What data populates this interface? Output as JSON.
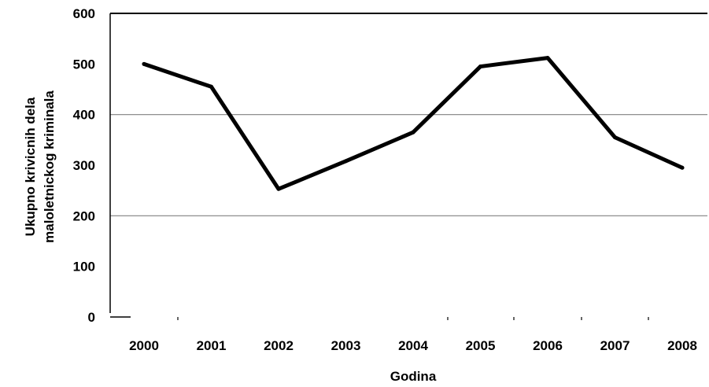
{
  "chart_data": {
    "type": "line",
    "x": [
      "2000",
      "2001",
      "2002",
      "2003",
      "2004",
      "2005",
      "2006",
      "2007",
      "2008"
    ],
    "series": [
      {
        "values": [
          500,
          455,
          253,
          308,
          365,
          495,
          512,
          355,
          295
        ]
      }
    ],
    "xlabel": "Godina",
    "ylabel_lines": [
      "Ukupno krivicnih dela",
      "maloletnickog kriminala"
    ],
    "ylim": [
      0,
      600
    ],
    "yticks": [
      0,
      100,
      200,
      300,
      400,
      500,
      600
    ],
    "grid": "horizontal at 200 and 400",
    "colors": {
      "line": "#000000",
      "gridline": "#808080",
      "axis": "#000000"
    }
  }
}
